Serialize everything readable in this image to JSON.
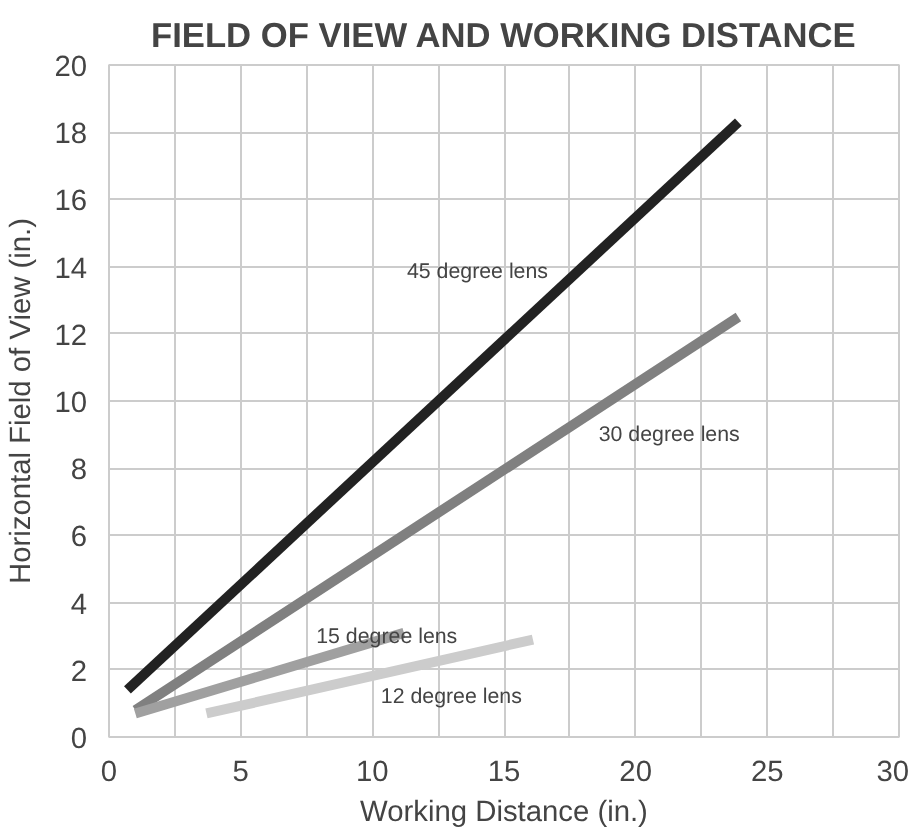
{
  "chart_data": {
    "type": "line",
    "title": "FIELD OF VIEW AND WORKING DISTANCE",
    "xlabel": "Working Distance (in.)",
    "ylabel": "Horizontal Field of View (in.)",
    "xlim": [
      0,
      30
    ],
    "ylim": [
      0,
      20
    ],
    "xticks": [
      0,
      {
        "value": 2.5,
        "label": null
      },
      5,
      {
        "value": 7.5,
        "label": null
      },
      10,
      {
        "value": 12.5,
        "label": null
      },
      15,
      {
        "value": 17.5,
        "label": null
      },
      20,
      {
        "value": 22.5,
        "label": null
      },
      25,
      {
        "value": 27.5,
        "label": null
      },
      30
    ],
    "yticks": [
      0,
      2,
      4,
      6,
      8,
      10,
      12,
      14,
      16,
      18,
      20
    ],
    "grid": true,
    "legend": false,
    "series": [
      {
        "name": "45 degree lens",
        "color": "#222222",
        "x": [
          0.7,
          23.9
        ],
        "values": [
          1.4,
          18.3
        ]
      },
      {
        "name": "30 degree lens",
        "color": "#808080",
        "x": [
          1.0,
          23.9
        ],
        "values": [
          0.8,
          12.5
        ]
      },
      {
        "name": "15 degree lens",
        "color": "#a0a0a0",
        "x": [
          1.0,
          11.2
        ],
        "values": [
          0.7,
          3.1
        ]
      },
      {
        "name": "12 degree lens",
        "color": "#cccccc",
        "x": [
          3.7,
          16.1
        ],
        "values": [
          0.7,
          2.9
        ]
      }
    ]
  }
}
